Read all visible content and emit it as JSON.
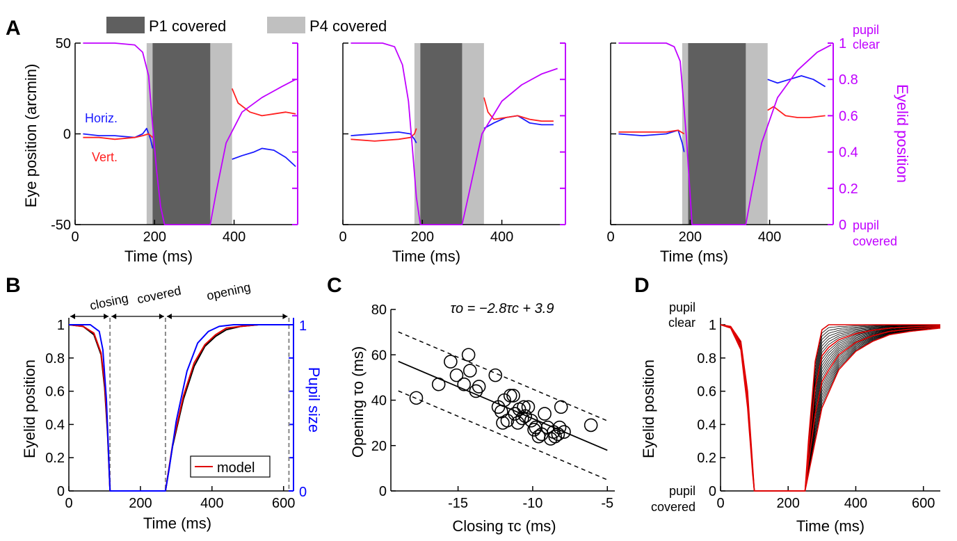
{
  "panel_labels": {
    "A": "A",
    "B": "B",
    "C": "C",
    "D": "D"
  },
  "legend_top": {
    "p1": "P1 covered",
    "p4": "P4 covered",
    "p1_color": "#5f5f5f",
    "p4_color": "#c0c0c0"
  },
  "panel_a": {
    "ylabel_left": "Eye position (arcmin)",
    "ylabel_right": "Eyelid position",
    "xlabel": "Time (ms)",
    "horiz_label": "Horiz.",
    "vert_label": "Vert.",
    "right_top_label_1": "pupil",
    "right_top_label_2": "clear",
    "right_bottom_label_1": "pupil",
    "right_bottom_label_2": "covered",
    "left_ticks": [
      "50",
      "0",
      "-50"
    ],
    "right_ticks": [
      "1",
      "0.8",
      "0.6",
      "0.4",
      "0.2",
      "0"
    ],
    "x_ticks": [
      "0",
      "200",
      "400"
    ]
  },
  "panel_b": {
    "ylabel_left": "Eyelid position",
    "ylabel_right": "Pupil size",
    "xlabel": "Time (ms)",
    "phase_closing": "closing",
    "phase_covered": "covered",
    "phase_opening": "opening",
    "legend_model": "model",
    "y_ticks": [
      "1",
      "0.8",
      "0.6",
      "0.4",
      "0.2",
      "0"
    ],
    "right_ticks": [
      "1",
      "0"
    ],
    "x_ticks": [
      "0",
      "200",
      "400",
      "600"
    ]
  },
  "panel_c": {
    "equation": "τo = −2.8τc + 3.9",
    "xlabel": "Closing τc (ms)",
    "ylabel": "Opening τo (ms)",
    "x_ticks": [
      "-15",
      "-10",
      "-5"
    ],
    "y_ticks": [
      "80",
      "60",
      "40",
      "20",
      "0"
    ]
  },
  "panel_d": {
    "ylabel": "Eyelid position",
    "xlabel": "Time (ms)",
    "label_top_1": "pupil",
    "label_top_2": "clear",
    "label_bottom_1": "pupil",
    "label_bottom_2": "covered",
    "y_ticks": [
      "1",
      "0.8",
      "0.6",
      "0.4",
      "0.2",
      "0"
    ],
    "x_ticks": [
      "0",
      "200",
      "400",
      "600"
    ]
  },
  "colors": {
    "horiz": "#1a1aff",
    "vert": "#ff2020",
    "eyelid": "#c000ff",
    "model": "#e00000",
    "pupil": "#0000ff",
    "trace": "#000000"
  },
  "chart_data": [
    {
      "type": "line",
      "panel": "A-1",
      "xlim": [
        0,
        560
      ],
      "ylim_left": [
        -50,
        50
      ],
      "ylim_right": [
        0,
        1
      ],
      "shaded": [
        {
          "name": "P4 covered",
          "x": [
            180,
            395
          ]
        },
        {
          "name": "P1 covered",
          "x": [
            195,
            340
          ]
        }
      ],
      "series": [
        {
          "name": "Horiz.",
          "axis": "left",
          "x": [
            20,
            60,
            100,
            150,
            170,
            180,
            190,
            195
          ],
          "y": [
            0,
            -1,
            -1,
            -2,
            0,
            3,
            -3,
            -8
          ]
        },
        {
          "name": "Horiz.",
          "axis": "left",
          "x": [
            395,
            420,
            450,
            470,
            500,
            530,
            555
          ],
          "y": [
            -14,
            -12,
            -10,
            -8,
            -9,
            -13,
            -18
          ]
        },
        {
          "name": "Vert.",
          "axis": "left",
          "x": [
            20,
            60,
            100,
            150,
            170,
            185,
            195
          ],
          "y": [
            -2,
            -2,
            -3,
            -2,
            -1,
            0,
            -2
          ]
        },
        {
          "name": "Vert.",
          "axis": "left",
          "x": [
            395,
            410,
            440,
            470,
            500,
            530,
            555
          ],
          "y": [
            25,
            17,
            12,
            10,
            11,
            12,
            11
          ]
        },
        {
          "name": "Eyelid position",
          "axis": "right",
          "x": [
            20,
            100,
            150,
            170,
            185,
            195,
            205,
            215,
            225,
            340,
            355,
            380,
            420,
            470,
            520,
            555
          ],
          "y": [
            1,
            1,
            0.99,
            0.95,
            0.82,
            0.55,
            0.3,
            0.1,
            0,
            0,
            0.18,
            0.45,
            0.62,
            0.7,
            0.76,
            0.8
          ]
        }
      ]
    },
    {
      "type": "line",
      "panel": "A-2",
      "xlim": [
        0,
        560
      ],
      "ylim_left": [
        -50,
        50
      ],
      "ylim_right": [
        0,
        1
      ],
      "shaded": [
        {
          "name": "P4 covered",
          "x": [
            180,
            355
          ]
        },
        {
          "name": "P1 covered",
          "x": [
            195,
            300
          ]
        }
      ],
      "series": [
        {
          "name": "Horiz.",
          "axis": "left",
          "x": [
            20,
            80,
            140,
            170,
            180,
            185
          ],
          "y": [
            -1,
            0,
            1,
            0,
            -3,
            -5
          ]
        },
        {
          "name": "Horiz.",
          "axis": "left",
          "x": [
            355,
            380,
            410,
            440,
            470,
            500,
            530
          ],
          "y": [
            3,
            6,
            9,
            10,
            6,
            5,
            5
          ]
        },
        {
          "name": "Vert.",
          "axis": "left",
          "x": [
            20,
            80,
            140,
            170,
            180,
            185
          ],
          "y": [
            -3,
            -4,
            -3,
            -2,
            0,
            3
          ]
        },
        {
          "name": "Vert.",
          "axis": "left",
          "x": [
            355,
            365,
            380,
            410,
            440,
            470,
            500,
            530
          ],
          "y": [
            20,
            12,
            8,
            9,
            10,
            8,
            7,
            7
          ]
        },
        {
          "name": "Eyelid position",
          "axis": "right",
          "x": [
            20,
            100,
            130,
            150,
            165,
            175,
            185,
            195,
            300,
            320,
            350,
            400,
            450,
            500,
            540
          ],
          "y": [
            1,
            1,
            0.98,
            0.88,
            0.68,
            0.42,
            0.15,
            0,
            0,
            0.2,
            0.5,
            0.68,
            0.77,
            0.83,
            0.86
          ]
        }
      ]
    },
    {
      "type": "line",
      "panel": "A-3",
      "xlim": [
        0,
        560
      ],
      "ylim_left": [
        -50,
        50
      ],
      "ylim_right": [
        0,
        1
      ],
      "shaded": [
        {
          "name": "P4 covered",
          "x": [
            180,
            395
          ]
        },
        {
          "name": "P1 covered",
          "x": [
            195,
            340
          ]
        }
      ],
      "series": [
        {
          "name": "Horiz.",
          "axis": "left",
          "x": [
            20,
            80,
            140,
            170,
            180,
            185
          ],
          "y": [
            0,
            -1,
            0,
            2,
            -5,
            -10
          ]
        },
        {
          "name": "Horiz.",
          "axis": "left",
          "x": [
            395,
            420,
            450,
            480,
            510,
            540
          ],
          "y": [
            30,
            28,
            30,
            32,
            30,
            26
          ]
        },
        {
          "name": "Vert.",
          "axis": "left",
          "x": [
            20,
            80,
            140,
            170,
            185
          ],
          "y": [
            1,
            1,
            1,
            2,
            0
          ]
        },
        {
          "name": "Vert.",
          "axis": "left",
          "x": [
            395,
            410,
            440,
            470,
            500,
            540
          ],
          "y": [
            13,
            15,
            10,
            9,
            9,
            10
          ]
        },
        {
          "name": "Eyelid position",
          "axis": "right",
          "x": [
            20,
            100,
            140,
            160,
            175,
            190,
            205,
            340,
            355,
            380,
            420,
            470,
            520,
            555
          ],
          "y": [
            1,
            1,
            1,
            0.98,
            0.9,
            0.5,
            0,
            0,
            0.18,
            0.45,
            0.7,
            0.85,
            0.95,
            0.99
          ]
        }
      ]
    },
    {
      "type": "line",
      "panel": "B",
      "xlim": [
        0,
        620
      ],
      "ylim": [
        0,
        1
      ],
      "phase_boundaries": [
        115,
        270,
        615
      ],
      "series": [
        {
          "name": "data",
          "x": [
            0,
            40,
            70,
            90,
            100,
            108,
            115,
            270,
            290,
            320,
            350,
            380,
            410,
            440,
            480,
            530,
            620
          ],
          "y": [
            1,
            0.99,
            0.94,
            0.82,
            0.62,
            0.35,
            0,
            0,
            0.27,
            0.55,
            0.75,
            0.87,
            0.93,
            0.97,
            0.99,
            1,
            1
          ]
        },
        {
          "name": "model",
          "x": [
            0,
            40,
            70,
            90,
            100,
            108,
            115,
            270,
            290,
            320,
            350,
            380,
            410,
            440,
            480,
            530,
            620
          ],
          "y": [
            1,
            0.99,
            0.95,
            0.83,
            0.64,
            0.37,
            0,
            0,
            0.28,
            0.57,
            0.77,
            0.88,
            0.94,
            0.98,
            0.99,
            1,
            1
          ]
        },
        {
          "name": "Pupil size",
          "x": [
            0,
            60,
            85,
            95,
            105,
            110,
            115,
            270,
            280,
            300,
            330,
            360,
            390,
            420,
            460,
            620
          ],
          "y": [
            1,
            1,
            0.96,
            0.85,
            0.55,
            0.28,
            0,
            0,
            0.13,
            0.42,
            0.72,
            0.89,
            0.96,
            0.99,
            1,
            1
          ]
        }
      ]
    },
    {
      "type": "scatter",
      "panel": "C",
      "xlim": [
        -19.5,
        -4.5
      ],
      "ylim": [
        0,
        80
      ],
      "equation": "τo = −2.8τc + 3.9",
      "fit": {
        "slope": -2.8,
        "intercept": 3.9
      },
      "x": [
        -17.8,
        -16.3,
        -15.5,
        -15.1,
        -14.6,
        -14.3,
        -14.2,
        -13.8,
        -13.6,
        -12.5,
        -12.3,
        -12.1,
        -12.0,
        -11.9,
        -11.7,
        -11.5,
        -11.3,
        -11.2,
        -11.0,
        -10.9,
        -10.7,
        -10.6,
        -10.5,
        -10.3,
        -10.1,
        -9.9,
        -9.8,
        -9.6,
        -9.4,
        -9.2,
        -9.0,
        -8.8,
        -8.6,
        -8.5,
        -8.3,
        -8.2,
        -8.1,
        -7.9,
        -6.1
      ],
      "y": [
        41,
        47,
        57,
        51,
        47,
        60,
        53,
        44,
        46,
        51,
        37,
        35,
        30,
        40,
        31,
        42,
        42,
        34,
        30,
        36,
        32,
        37,
        33,
        37,
        31,
        27,
        28,
        24,
        25,
        34,
        28,
        23,
        26,
        24,
        25,
        28,
        37,
        26,
        29
      ]
    },
    {
      "type": "line",
      "panel": "D",
      "xlim": [
        0,
        650
      ],
      "ylim": [
        0,
        1
      ],
      "description_series": "many black traces with red model fits",
      "series": [
        {
          "name": "fast closing/opening",
          "x": [
            0,
            30,
            60,
            80,
            95,
            100,
            250,
            260,
            280,
            300,
            320,
            650
          ],
          "y": [
            1,
            0.98,
            0.85,
            0.5,
            0.1,
            0,
            0,
            0.3,
            0.78,
            0.97,
            1,
            1
          ]
        },
        {
          "name": "slow closing/opening",
          "x": [
            0,
            30,
            60,
            80,
            95,
            100,
            250,
            270,
            300,
            350,
            400,
            450,
            500,
            560,
            650
          ],
          "y": [
            1,
            0.99,
            0.9,
            0.6,
            0.15,
            0,
            0,
            0.2,
            0.5,
            0.73,
            0.84,
            0.9,
            0.94,
            0.96,
            0.98
          ]
        }
      ]
    }
  ]
}
